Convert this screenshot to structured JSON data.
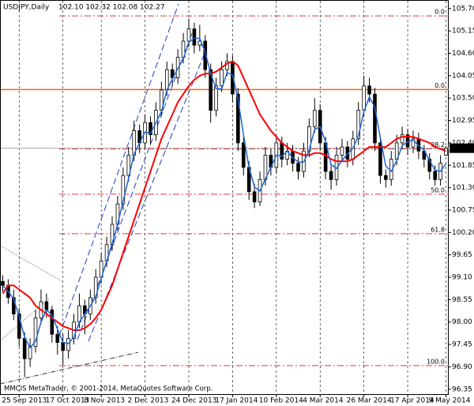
{
  "chart_data": {
    "type": "candlestick",
    "title": "USDJPY,Daily",
    "subtitle": "102.10 102.32 102.08 102.27",
    "footer": "MMCIS MetaTrader, © 2001-2014, MetaQuotes Software Corp.",
    "categories": [
      null,
      null,
      null,
      "25 Sep 2013",
      null,
      null,
      null,
      null,
      null,
      null,
      null,
      "17 Oct 2013",
      null,
      null,
      null,
      null,
      null,
      null,
      "8 Nov 2013",
      null,
      null,
      null,
      null,
      null,
      null,
      null,
      "2 Dec 2013",
      null,
      null,
      null,
      null,
      null,
      null,
      null,
      "24 Dec 2013",
      null,
      null,
      null,
      null,
      null,
      null,
      null,
      "17 Jan 2014",
      null,
      null,
      null,
      null,
      null,
      null,
      null,
      "10 Feb 2014",
      null,
      null,
      null,
      null,
      null,
      null,
      null,
      "4 Mar 2014",
      null,
      null,
      null,
      null,
      null,
      null,
      null,
      "26 Mar 2014",
      null,
      null,
      null,
      null,
      null,
      null,
      null,
      "17 Apr 2014",
      null,
      null,
      null,
      null,
      null,
      null,
      "9 May 2014"
    ],
    "ohlc": [
      [
        99.0,
        99.15,
        98.75,
        98.9
      ],
      [
        98.9,
        99.05,
        98.45,
        98.6
      ],
      [
        98.6,
        98.8,
        98.05,
        98.2
      ],
      [
        98.2,
        98.35,
        97.4,
        97.6
      ],
      [
        97.6,
        97.75,
        96.65,
        97.1
      ],
      [
        97.1,
        97.6,
        96.9,
        97.4
      ],
      [
        97.4,
        98.3,
        97.25,
        98.1
      ],
      [
        98.1,
        98.8,
        97.95,
        98.5
      ],
      [
        98.5,
        98.7,
        98.1,
        98.3
      ],
      [
        98.3,
        98.4,
        97.5,
        97.7
      ],
      [
        97.7,
        97.9,
        97.2,
        97.5
      ],
      [
        97.5,
        97.7,
        96.95,
        97.3
      ],
      [
        97.3,
        97.8,
        97.1,
        97.6
      ],
      [
        97.6,
        98.2,
        97.45,
        98.0
      ],
      [
        98.0,
        98.7,
        97.85,
        98.4
      ],
      [
        98.4,
        98.55,
        97.7,
        98.2
      ],
      [
        98.2,
        98.8,
        98.05,
        98.6
      ],
      [
        98.6,
        99.3,
        98.45,
        99.1
      ],
      [
        99.1,
        99.7,
        98.95,
        99.5
      ],
      [
        99.5,
        100.1,
        99.35,
        99.9
      ],
      [
        99.9,
        100.6,
        99.75,
        100.4
      ],
      [
        100.4,
        101.1,
        100.25,
        100.9
      ],
      [
        100.9,
        101.8,
        100.75,
        101.6
      ],
      [
        101.6,
        102.3,
        101.45,
        102.1
      ],
      [
        102.1,
        102.95,
        101.95,
        102.7
      ],
      [
        102.7,
        102.85,
        102.15,
        102.4
      ],
      [
        102.4,
        103.1,
        102.25,
        102.9
      ],
      [
        102.9,
        103.05,
        102.35,
        102.6
      ],
      [
        102.6,
        103.4,
        102.45,
        103.2
      ],
      [
        103.2,
        103.9,
        103.05,
        103.7
      ],
      [
        103.7,
        104.4,
        103.55,
        104.2
      ],
      [
        104.2,
        104.35,
        103.8,
        104.0
      ],
      [
        104.0,
        104.7,
        103.85,
        104.5
      ],
      [
        104.5,
        105.1,
        104.35,
        104.9
      ],
      [
        104.9,
        105.45,
        104.75,
        105.2
      ],
      [
        105.2,
        105.35,
        104.6,
        104.8
      ],
      [
        104.8,
        105.3,
        104.65,
        104.9
      ],
      [
        104.9,
        105.05,
        104.0,
        104.2
      ],
      [
        104.2,
        104.35,
        102.9,
        103.2
      ],
      [
        103.2,
        104.0,
        103.05,
        103.8
      ],
      [
        103.8,
        104.4,
        103.65,
        104.2
      ],
      [
        104.2,
        104.6,
        104.05,
        104.4
      ],
      [
        104.4,
        104.55,
        103.4,
        103.6
      ],
      [
        103.6,
        103.75,
        102.2,
        102.4
      ],
      [
        102.4,
        102.55,
        101.6,
        101.8
      ],
      [
        101.8,
        101.95,
        101.0,
        101.2
      ],
      [
        101.2,
        101.4,
        100.8,
        100.95
      ],
      [
        100.95,
        101.7,
        100.85,
        101.5
      ],
      [
        101.5,
        102.3,
        101.35,
        102.1
      ],
      [
        102.1,
        102.25,
        101.6,
        101.8
      ],
      [
        101.8,
        102.6,
        101.65,
        102.4
      ],
      [
        102.4,
        102.55,
        101.8,
        102.0
      ],
      [
        102.0,
        102.4,
        101.85,
        102.2
      ],
      [
        102.2,
        102.35,
        101.7,
        101.9
      ],
      [
        101.9,
        102.05,
        101.5,
        101.7
      ],
      [
        101.7,
        102.4,
        101.55,
        102.2
      ],
      [
        102.2,
        103.0,
        102.05,
        102.8
      ],
      [
        102.8,
        103.5,
        102.65,
        103.2
      ],
      [
        103.2,
        103.35,
        102.2,
        102.4
      ],
      [
        102.4,
        102.55,
        101.5,
        101.7
      ],
      [
        101.7,
        101.85,
        101.25,
        101.5
      ],
      [
        101.5,
        102.3,
        101.35,
        102.1
      ],
      [
        102.1,
        102.5,
        101.95,
        102.3
      ],
      [
        102.3,
        102.45,
        101.8,
        102.0
      ],
      [
        102.0,
        102.7,
        101.85,
        102.5
      ],
      [
        102.5,
        103.4,
        102.35,
        103.2
      ],
      [
        103.2,
        104.05,
        103.05,
        103.8
      ],
      [
        103.8,
        104.0,
        103.4,
        103.6
      ],
      [
        103.6,
        103.75,
        102.2,
        102.4
      ],
      [
        102.4,
        102.55,
        101.4,
        101.6
      ],
      [
        101.6,
        101.75,
        101.3,
        101.5
      ],
      [
        101.5,
        102.2,
        101.35,
        102.0
      ],
      [
        102.0,
        102.6,
        101.85,
        102.4
      ],
      [
        102.4,
        102.8,
        102.25,
        102.6
      ],
      [
        102.6,
        102.75,
        102.1,
        102.3
      ],
      [
        102.3,
        102.7,
        102.15,
        102.5
      ],
      [
        102.5,
        102.65,
        102.0,
        102.2
      ],
      [
        102.2,
        102.35,
        101.8,
        102.0
      ],
      [
        102.0,
        102.15,
        101.5,
        101.7
      ],
      [
        101.7,
        101.85,
        101.35,
        101.5
      ],
      [
        101.5,
        102.1,
        101.35,
        101.9
      ],
      [
        102.1,
        102.32,
        102.08,
        102.27
      ]
    ],
    "candle_color": "#000000",
    "series": [
      {
        "color": "#ff0000",
        "values": [
          98.7,
          98.9,
          98.9,
          98.8,
          98.7,
          98.6,
          98.4,
          98.3,
          98.2,
          98.1,
          98.0,
          97.9,
          97.85,
          97.8,
          97.8,
          97.85,
          97.95,
          98.1,
          98.3,
          98.6,
          98.9,
          99.3,
          99.7,
          100.1,
          100.5,
          100.9,
          101.3,
          101.7,
          102.1,
          102.5,
          102.8,
          103.1,
          103.4,
          103.6,
          103.8,
          103.95,
          104.05,
          104.1,
          104.1,
          104.15,
          104.25,
          104.35,
          104.4,
          104.3,
          104.0,
          103.7,
          103.4,
          103.1,
          102.9,
          102.7,
          102.55,
          102.4,
          102.3,
          102.2,
          102.15,
          102.1,
          102.1,
          102.15,
          102.15,
          102.1,
          102.0,
          101.95,
          101.95,
          101.95,
          102.0,
          102.1,
          102.2,
          102.3,
          102.3,
          102.3,
          102.3,
          102.4,
          102.5,
          102.55,
          102.55,
          102.55,
          102.5,
          102.45,
          102.4,
          102.3,
          102.25,
          102.2
        ]
      },
      {
        "color": "#1e64d2",
        "values": [
          98.9,
          98.75,
          98.57,
          98.13,
          97.63,
          97.37,
          97.53,
          98.0,
          98.3,
          98.17,
          97.83,
          97.5,
          97.47,
          97.63,
          98.0,
          98.2,
          98.4,
          98.63,
          99.07,
          99.5,
          99.93,
          100.4,
          100.97,
          101.53,
          102.13,
          102.4,
          102.67,
          102.63,
          102.9,
          103.17,
          103.7,
          103.97,
          104.23,
          104.47,
          104.87,
          104.97,
          104.97,
          104.63,
          104.1,
          103.73,
          103.73,
          104.13,
          104.07,
          103.47,
          102.6,
          101.8,
          101.32,
          101.22,
          101.52,
          101.8,
          102.1,
          102.07,
          102.2,
          102.03,
          101.93,
          101.93,
          102.23,
          102.73,
          102.8,
          102.43,
          101.87,
          101.77,
          101.97,
          102.13,
          102.27,
          102.57,
          103.17,
          103.53,
          103.27,
          102.53,
          101.83,
          101.7,
          101.97,
          102.33,
          102.43,
          102.47,
          102.33,
          102.23,
          101.97,
          101.73,
          101.7,
          101.89
        ]
      }
    ],
    "levels": [
      {
        "label": "0.0",
        "value": 105.52,
        "color": "#e0363c",
        "style": "dashdot"
      },
      {
        "label": "0.0",
        "value": 103.71,
        "color": "#ff6600",
        "style": "solid"
      },
      {
        "label": "38.2",
        "value": 102.25,
        "color": "#e0363c",
        "style": "dashdot"
      },
      {
        "label": "50.0",
        "value": 101.14,
        "color": "#e0363c",
        "style": "dashdot"
      },
      {
        "label": "61.8",
        "value": 100.17,
        "color": "#e0363c",
        "style": "dashdot"
      },
      {
        "label": "100.0",
        "value": 96.93,
        "color": "#e0363c",
        "style": "dashdot"
      }
    ],
    "last_price": {
      "value": 102.27,
      "label": "102.27"
    },
    "ylim": [
      96.21,
      105.91
    ],
    "yticks": [
      {
        "value": 105.7,
        "label": "105.70"
      },
      105.15,
      {
        "value": 104.6,
        "label": "104.60"
      },
      104.05,
      {
        "value": 103.5,
        "label": "103.50"
      },
      102.95,
      {
        "value": 102.4,
        "label": "102.40"
      },
      101.85,
      {
        "value": 101.3,
        "label": "101.30"
      },
      100.75,
      {
        "value": 100.2,
        "label": "100.20"
      },
      99.65,
      {
        "value": 99.1,
        "label": "99.10"
      },
      98.55,
      {
        "value": 98.0,
        "label": "98.00"
      },
      97.45,
      {
        "value": 96.9,
        "label": "96.90"
      },
      96.35
    ],
    "grid_x": true,
    "grid_y": false
  }
}
